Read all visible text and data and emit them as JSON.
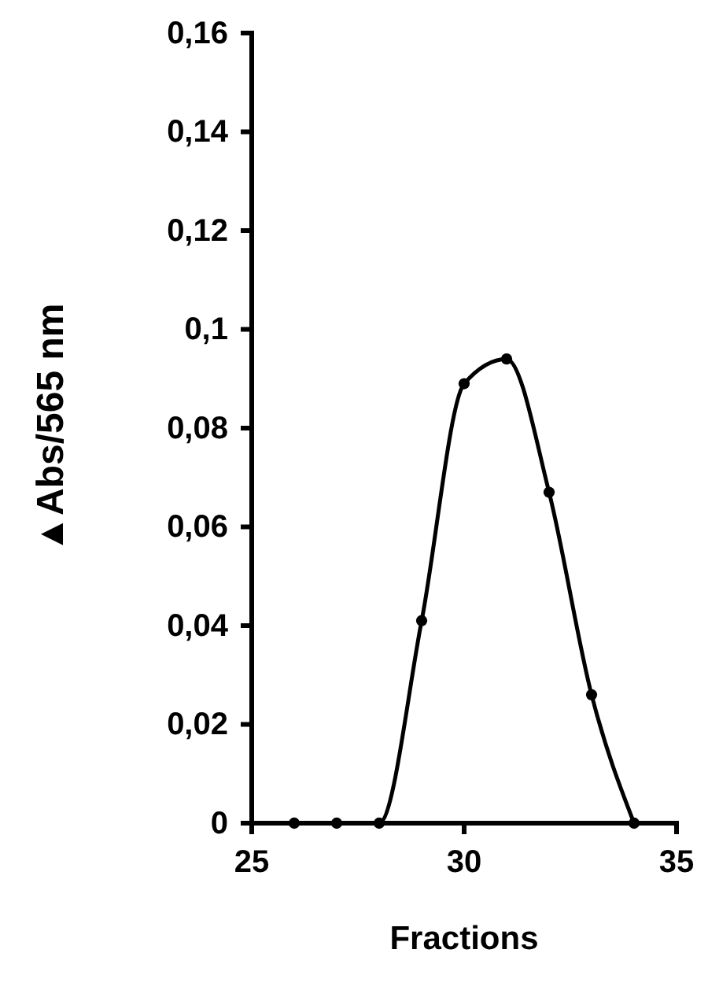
{
  "chart_data": {
    "type": "line",
    "xlabel": "Fractions",
    "ylabel": "▲Abs/565 nm",
    "x": [
      26,
      27,
      28,
      29,
      30,
      31,
      32,
      33,
      34
    ],
    "series": [
      {
        "color": "#000000",
        "values": [
          0,
          0,
          0,
          0.041,
          0.089,
          0.094,
          0.067,
          0.026,
          0
        ]
      }
    ],
    "xlim": [
      25,
      35
    ],
    "xticks": [
      25,
      30,
      35
    ],
    "ylim": [
      0,
      0.16
    ],
    "yticks": [
      0,
      {
        "value": 0.02,
        "label": "0,02"
      },
      {
        "value": 0.04,
        "label": "0,04"
      },
      {
        "value": 0.06,
        "label": "0,06"
      },
      {
        "value": 0.08,
        "label": "0,08"
      },
      {
        "value": 0.1,
        "label": "0,1"
      },
      {
        "value": 0.12,
        "label": "0,12"
      },
      {
        "value": 0.14,
        "label": "0,14"
      },
      {
        "value": 0.16,
        "label": "0,16"
      }
    ],
    "marker": "circle"
  }
}
